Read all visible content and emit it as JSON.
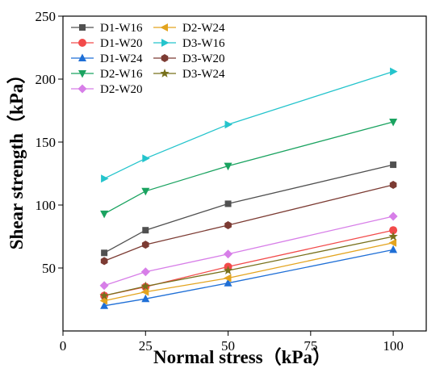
{
  "chart_data": {
    "type": "line",
    "xlabel": "Normal stress（kPa）",
    "ylabel": "Shear strength（kPa）",
    "xlim": [
      0,
      110
    ],
    "ylim": [
      0,
      250
    ],
    "xticks": [
      0,
      25,
      50,
      75,
      100
    ],
    "yticks": [
      50,
      100,
      150,
      200,
      250
    ],
    "x": [
      12.5,
      25,
      50,
      100
    ],
    "legend_position": "top-left",
    "legend_columns": 2,
    "grid": false,
    "series": [
      {
        "name": "D1-W16",
        "color": "#505050",
        "marker": "square",
        "values": [
          62,
          80,
          101,
          132
        ]
      },
      {
        "name": "D1-W20",
        "color": "#f24a4a",
        "marker": "circle",
        "values": [
          28,
          35,
          51,
          80
        ]
      },
      {
        "name": "D1-W24",
        "color": "#1f6fd6",
        "marker": "triangle-up",
        "values": [
          20,
          25.5,
          38,
          64.5
        ]
      },
      {
        "name": "D2-W16",
        "color": "#1aa360",
        "marker": "triangle-down",
        "values": [
          93,
          111,
          131,
          166
        ]
      },
      {
        "name": "D2-W20",
        "color": "#d77ee8",
        "marker": "diamond",
        "values": [
          36,
          47,
          61,
          91
        ]
      },
      {
        "name": "D2-W24",
        "color": "#e3a41f",
        "marker": "triangle-left",
        "values": [
          24,
          31,
          42,
          70
        ]
      },
      {
        "name": "D3-W16",
        "color": "#24c4cc",
        "marker": "triangle-right",
        "values": [
          121,
          137,
          164,
          206
        ]
      },
      {
        "name": "D3-W20",
        "color": "#7c3b33",
        "marker": "hexagon",
        "values": [
          55.5,
          68.5,
          84,
          116
        ]
      },
      {
        "name": "D3-W24",
        "color": "#77701b",
        "marker": "star",
        "values": [
          28,
          35.5,
          48,
          75
        ]
      }
    ]
  }
}
